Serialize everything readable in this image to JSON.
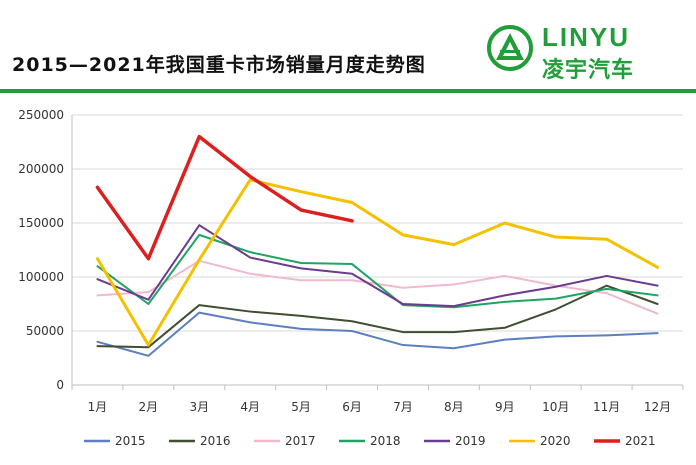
{
  "header": {
    "title": "2015—2021年我国重卡市场销量月度走势图",
    "brand_en": "LINYU",
    "brand_cn": "凌宇汽车",
    "brand_color": "#1f9e3a"
  },
  "chart_data": {
    "type": "line",
    "title": "2015—2021年我国重卡市场销量月度走势图",
    "categories": [
      "1月",
      "2月",
      "3月",
      "4月",
      "5月",
      "6月",
      "7月",
      "8月",
      "9月",
      "10月",
      "11月",
      "12月"
    ],
    "ylim": [
      0,
      250000
    ],
    "yticks": [
      0,
      50000,
      100000,
      150000,
      200000,
      250000
    ],
    "grid": true,
    "legend_position": "bottom",
    "series": [
      {
        "name": "2015",
        "color": "#5b7fbf",
        "values": [
          40000,
          27000,
          67000,
          58000,
          52000,
          50000,
          37000,
          34000,
          42000,
          45000,
          46000,
          48000
        ]
      },
      {
        "name": "2016",
        "color": "#3f4f30",
        "values": [
          36000,
          35000,
          74000,
          68000,
          64000,
          59000,
          49000,
          49000,
          53000,
          70000,
          92000,
          75000
        ]
      },
      {
        "name": "2017",
        "color": "#f2b8cf",
        "values": [
          83000,
          86000,
          115000,
          103000,
          97000,
          97000,
          90000,
          93000,
          101000,
          92000,
          85000,
          66000
        ]
      },
      {
        "name": "2018",
        "color": "#1fa463",
        "values": [
          110000,
          75000,
          139000,
          123000,
          113000,
          112000,
          74000,
          72000,
          77000,
          80000,
          89000,
          83000
        ]
      },
      {
        "name": "2019",
        "color": "#6b3c8e",
        "values": [
          98000,
          79000,
          148000,
          118000,
          108000,
          103000,
          75000,
          73000,
          83000,
          91000,
          101000,
          92000
        ]
      },
      {
        "name": "2020",
        "color": "#f5c000",
        "values": [
          117000,
          37000,
          116000,
          190000,
          179000,
          169000,
          139000,
          130000,
          150000,
          137000,
          135000,
          109000
        ]
      },
      {
        "name": "2021",
        "color": "#dd1f1f",
        "values": [
          183000,
          117000,
          230000,
          193000,
          162000,
          152000,
          null,
          null,
          null,
          null,
          null,
          null
        ]
      }
    ]
  }
}
